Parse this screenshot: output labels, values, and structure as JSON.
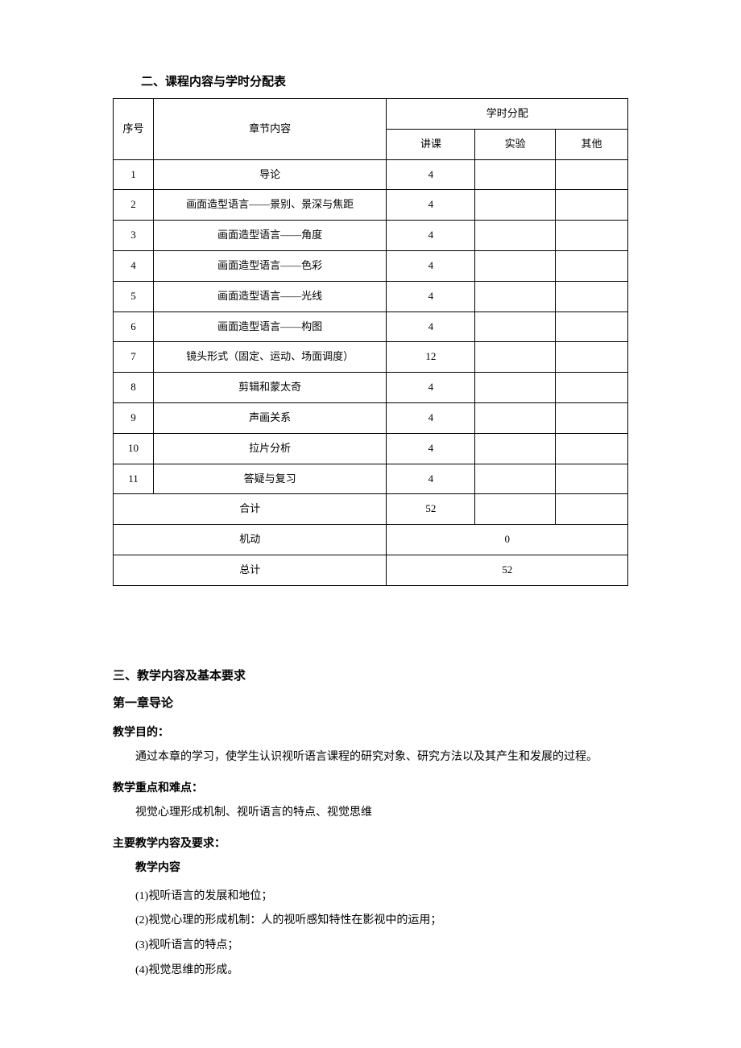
{
  "section2": {
    "title": "二、课程内容与学时分配表",
    "headers": {
      "num": "序号",
      "chapter": "章节内容",
      "alloc": "学时分配",
      "lecture": "讲课",
      "experiment": "实验",
      "other": "其他"
    },
    "rows": [
      {
        "num": "1",
        "chapter": "导论",
        "lecture": "4",
        "experiment": "",
        "other": ""
      },
      {
        "num": "2",
        "chapter": "画面造型语言——景别、景深与焦距",
        "lecture": "4",
        "experiment": "",
        "other": ""
      },
      {
        "num": "3",
        "chapter": "画面造型语言——角度",
        "lecture": "4",
        "experiment": "",
        "other": ""
      },
      {
        "num": "4",
        "chapter": "画面造型语言——色彩",
        "lecture": "4",
        "experiment": "",
        "other": ""
      },
      {
        "num": "5",
        "chapter": "画面造型语言——光线",
        "lecture": "4",
        "experiment": "",
        "other": ""
      },
      {
        "num": "6",
        "chapter": "画面造型语言——构图",
        "lecture": "4",
        "experiment": "",
        "other": ""
      },
      {
        "num": "7",
        "chapter": "镜头形式（固定、运动、场面调度）",
        "lecture": "12",
        "experiment": "",
        "other": ""
      },
      {
        "num": "8",
        "chapter": "剪辑和蒙太奇",
        "lecture": "4",
        "experiment": "",
        "other": ""
      },
      {
        "num": "9",
        "chapter": "声画关系",
        "lecture": "4",
        "experiment": "",
        "other": ""
      },
      {
        "num": "10",
        "chapter": "拉片分析",
        "lecture": "4",
        "experiment": "",
        "other": ""
      },
      {
        "num": "11",
        "chapter": "答疑与复习",
        "lecture": "4",
        "experiment": "",
        "other": ""
      }
    ],
    "subtotal": {
      "label": "合计",
      "lecture": "52",
      "experiment": "",
      "other": ""
    },
    "flexible": {
      "label": "机动",
      "value": "0"
    },
    "total": {
      "label": "总计",
      "value": "52"
    }
  },
  "section3": {
    "title": "三、教学内容及基本要求",
    "chapter1": {
      "title": "第一章导论",
      "purpose_label": "教学目的：",
      "purpose_text": "通过本章的学习，使学生认识视听语言课程的研究对象、研究方法以及其产生和发展的过程。",
      "focus_label": "教学重点和难点：",
      "focus_text": "视觉心理形成机制、视听语言的特点、视觉思维",
      "content_req_label": "主要教学内容及要求：",
      "content_label": "教学内容",
      "items": [
        "(1)视听语言的发展和地位；",
        "(2)视觉心理的形成机制：人的视听感知特性在影视中的运用；",
        "(3)视听语言的特点；",
        "(4)视觉思维的形成。"
      ]
    }
  }
}
